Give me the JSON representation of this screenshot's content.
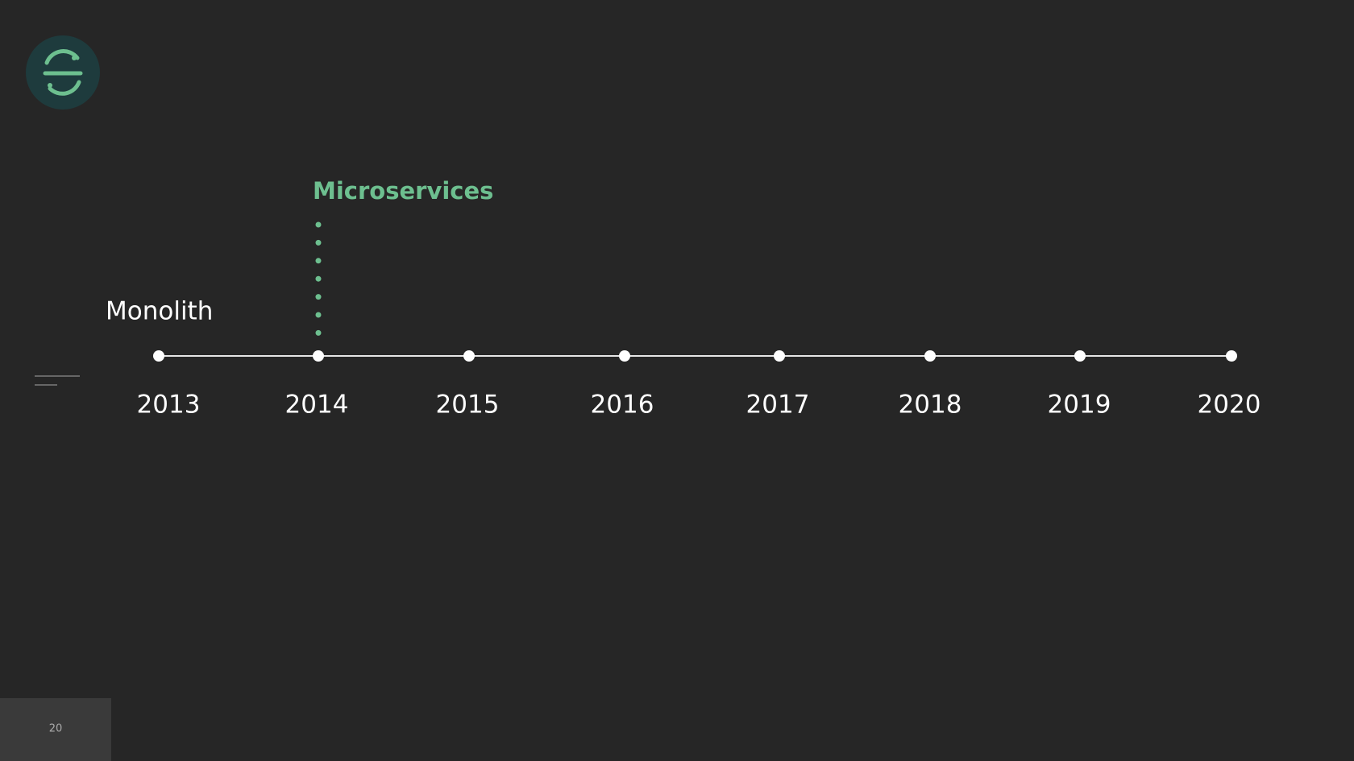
{
  "labels": {
    "monolith": "Monolith",
    "microservices": "Microservices"
  },
  "timeline": {
    "years": [
      "2013",
      "2014",
      "2015",
      "2016",
      "2017",
      "2018",
      "2019",
      "2020"
    ]
  },
  "page_number": "20"
}
